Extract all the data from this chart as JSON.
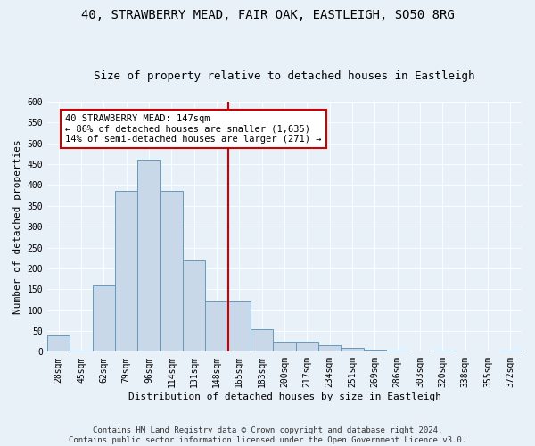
{
  "title1": "40, STRAWBERRY MEAD, FAIR OAK, EASTLEIGH, SO50 8RG",
  "title2": "Size of property relative to detached houses in Eastleigh",
  "xlabel": "Distribution of detached houses by size in Eastleigh",
  "ylabel": "Number of detached properties",
  "bar_labels": [
    "28sqm",
    "45sqm",
    "62sqm",
    "79sqm",
    "96sqm",
    "114sqm",
    "131sqm",
    "148sqm",
    "165sqm",
    "183sqm",
    "200sqm",
    "217sqm",
    "234sqm",
    "251sqm",
    "269sqm",
    "286sqm",
    "303sqm",
    "320sqm",
    "338sqm",
    "355sqm",
    "372sqm"
  ],
  "bar_heights": [
    40,
    3,
    160,
    385,
    460,
    385,
    220,
    120,
    120,
    55,
    25,
    25,
    15,
    10,
    5,
    3,
    0,
    2,
    0,
    0,
    2
  ],
  "bar_color": "#c8d8e8",
  "bar_edge_color": "#6699bb",
  "vline_x": 7.5,
  "annotation_text": "40 STRAWBERRY MEAD: 147sqm\n← 86% of detached houses are smaller (1,635)\n14% of semi-detached houses are larger (271) →",
  "annotation_box_color": "#ffffff",
  "annotation_box_edge_color": "#cc0000",
  "vline_color": "#cc0000",
  "ylim": [
    0,
    600
  ],
  "yticks": [
    0,
    50,
    100,
    150,
    200,
    250,
    300,
    350,
    400,
    450,
    500,
    550,
    600
  ],
  "background_color": "#e8f0f8",
  "footer_text": "Contains HM Land Registry data © Crown copyright and database right 2024.\nContains public sector information licensed under the Open Government Licence v3.0.",
  "title_fontsize": 10,
  "subtitle_fontsize": 9,
  "axis_label_fontsize": 8,
  "tick_fontsize": 7,
  "annotation_fontsize": 7.5
}
